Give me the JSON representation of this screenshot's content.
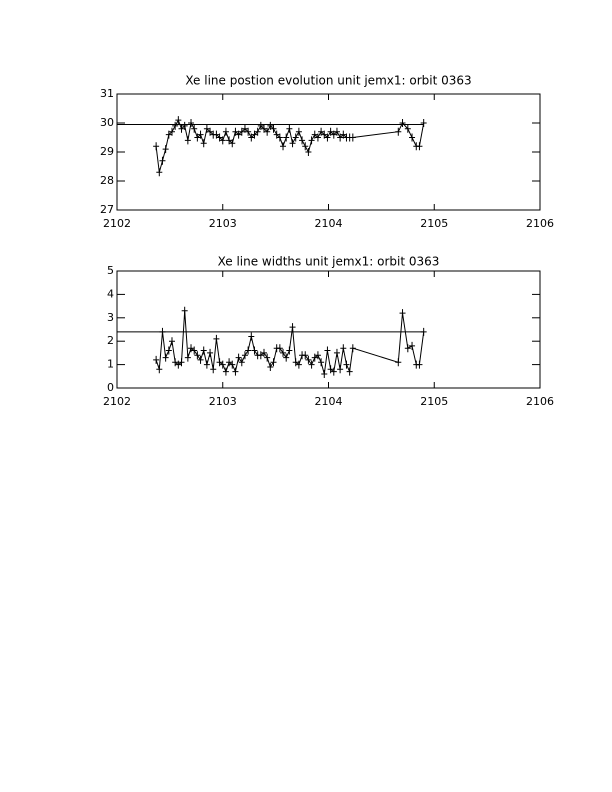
{
  "chart_data": [
    {
      "type": "line",
      "title": "Xe line postion evolution unit jemx1: orbit 0363",
      "x": [
        2102.37,
        2102.4,
        2102.43,
        2102.46,
        2102.49,
        2102.52,
        2102.55,
        2102.58,
        2102.61,
        2102.64,
        2102.67,
        2102.7,
        2102.73,
        2102.76,
        2102.79,
        2102.82,
        2102.85,
        2102.88,
        2102.91,
        2102.94,
        2102.97,
        2103.0,
        2103.03,
        2103.06,
        2103.09,
        2103.12,
        2103.15,
        2103.18,
        2103.21,
        2103.24,
        2103.27,
        2103.3,
        2103.33,
        2103.36,
        2103.39,
        2103.42,
        2103.45,
        2103.48,
        2103.51,
        2103.54,
        2103.57,
        2103.6,
        2103.63,
        2103.66,
        2103.69,
        2103.72,
        2103.75,
        2103.78,
        2103.81,
        2103.84,
        2103.87,
        2103.9,
        2103.93,
        2103.96,
        2103.99,
        2104.02,
        2104.05,
        2104.08,
        2104.11,
        2104.14,
        2104.17,
        2104.2,
        2104.23,
        2104.66,
        2104.7,
        2104.75,
        2104.79,
        2104.83,
        2104.86,
        2104.9
      ],
      "values": [
        29.2,
        28.3,
        28.7,
        29.1,
        29.6,
        29.7,
        29.9,
        30.1,
        29.8,
        29.9,
        29.4,
        30.0,
        29.8,
        29.5,
        29.6,
        29.3,
        29.8,
        29.7,
        29.6,
        29.6,
        29.5,
        29.4,
        29.7,
        29.4,
        29.3,
        29.7,
        29.6,
        29.7,
        29.8,
        29.7,
        29.5,
        29.6,
        29.7,
        29.9,
        29.8,
        29.7,
        29.9,
        29.8,
        29.6,
        29.5,
        29.2,
        29.5,
        29.8,
        29.3,
        29.5,
        29.7,
        29.4,
        29.2,
        29.0,
        29.4,
        29.6,
        29.5,
        29.7,
        29.6,
        29.5,
        29.7,
        29.6,
        29.7,
        29.5,
        29.6,
        29.5,
        29.5,
        29.5,
        29.7,
        30.0,
        29.8,
        29.5,
        29.2,
        29.2,
        30.0
      ],
      "hline": {
        "y": 29.95,
        "x": [
          2102,
          2104.9
        ]
      },
      "color": "#000000",
      "xlim": [
        2102,
        2106
      ],
      "xticks": [
        2102,
        2103,
        2104,
        2105,
        2106
      ],
      "ylim": [
        27,
        31
      ],
      "yticks": [
        27,
        28,
        29,
        30,
        31
      ]
    },
    {
      "type": "line",
      "title": "Xe line widths unit jemx1: orbit 0363",
      "x": [
        2102.37,
        2102.4,
        2102.43,
        2102.46,
        2102.49,
        2102.52,
        2102.55,
        2102.58,
        2102.61,
        2102.64,
        2102.67,
        2102.7,
        2102.73,
        2102.76,
        2102.79,
        2102.82,
        2102.85,
        2102.88,
        2102.91,
        2102.94,
        2102.97,
        2103.0,
        2103.03,
        2103.06,
        2103.09,
        2103.12,
        2103.15,
        2103.18,
        2103.21,
        2103.24,
        2103.27,
        2103.3,
        2103.33,
        2103.36,
        2103.39,
        2103.42,
        2103.45,
        2103.48,
        2103.51,
        2103.54,
        2103.57,
        2103.6,
        2103.63,
        2103.66,
        2103.69,
        2103.72,
        2103.75,
        2103.78,
        2103.81,
        2103.84,
        2103.87,
        2103.9,
        2103.93,
        2103.96,
        2103.99,
        2104.02,
        2104.05,
        2104.08,
        2104.11,
        2104.14,
        2104.17,
        2104.2,
        2104.23,
        2104.66,
        2104.7,
        2104.75,
        2104.79,
        2104.83,
        2104.86,
        2104.9
      ],
      "values": [
        1.2,
        0.8,
        2.4,
        1.3,
        1.6,
        2.0,
        1.1,
        1.0,
        1.1,
        3.3,
        1.3,
        1.7,
        1.6,
        1.4,
        1.2,
        1.6,
        1.0,
        1.5,
        0.8,
        2.1,
        1.1,
        1.0,
        0.7,
        1.1,
        1.0,
        0.7,
        1.3,
        1.1,
        1.4,
        1.6,
        2.2,
        1.6,
        1.4,
        1.4,
        1.5,
        1.3,
        0.9,
        1.1,
        1.7,
        1.7,
        1.5,
        1.3,
        1.6,
        2.6,
        1.1,
        1.0,
        1.4,
        1.4,
        1.2,
        1.0,
        1.3,
        1.4,
        1.1,
        0.6,
        1.6,
        0.8,
        0.7,
        1.5,
        0.8,
        1.7,
        1.0,
        0.7,
        1.7,
        1.1,
        3.2,
        1.7,
        1.8,
        1.0,
        1.0,
        2.4
      ],
      "hline": {
        "y": 2.4,
        "x": [
          2102,
          2104.9
        ]
      },
      "color": "#000000",
      "xlim": [
        2102,
        2106
      ],
      "xticks": [
        2102,
        2103,
        2104,
        2105,
        2106
      ],
      "ylim": [
        0,
        5
      ],
      "yticks": [
        0,
        1,
        2,
        3,
        4,
        5
      ]
    }
  ]
}
